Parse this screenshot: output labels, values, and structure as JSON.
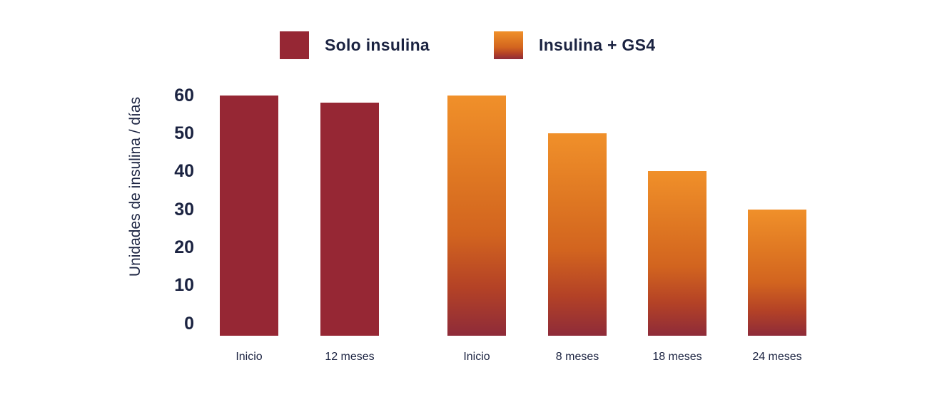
{
  "colors": {
    "solo_insulina_bar": "#962734",
    "gs4_gradient": [
      {
        "color": "#F0902A",
        "stop": 0
      },
      {
        "color": "#DE7622",
        "stop": 35
      },
      {
        "color": "#D2641F",
        "stop": 58
      },
      {
        "color": "#B44226",
        "stop": 80
      },
      {
        "color": "#8E2B39",
        "stop": 100
      }
    ],
    "text": "#1B2341",
    "background": "#FFFFFF"
  },
  "chart_data": {
    "type": "bar",
    "title": "",
    "ylabel": "Unidades de insulina / días",
    "xlabel": "",
    "ylim": [
      0,
      60
    ],
    "yticks": [
      60,
      50,
      40,
      30,
      20,
      10,
      0
    ],
    "grid": false,
    "legend_position": "top",
    "legend": [
      "Solo insulina",
      "Insulina + GS4"
    ],
    "bars": [
      {
        "label": "Inicio",
        "value": 60,
        "series": "Solo insulina"
      },
      {
        "label": "12 meses",
        "value": 58,
        "series": "Solo insulina"
      },
      {
        "label": "Inicio",
        "value": 60,
        "series": "Insulina + GS4"
      },
      {
        "label": "8 meses",
        "value": 50,
        "series": "Insulina + GS4"
      },
      {
        "label": "18 meses",
        "value": 40,
        "series": "Insulina + GS4"
      },
      {
        "label": "24 meses",
        "value": 30,
        "series": "Insulina + GS4"
      }
    ],
    "series": [
      {
        "name": "Solo insulina",
        "categories": [
          "Inicio",
          "12 meses"
        ],
        "values": [
          60,
          58
        ]
      },
      {
        "name": "Insulina + GS4",
        "categories": [
          "Inicio",
          "8 meses",
          "18 meses",
          "24 meses"
        ],
        "values": [
          60,
          50,
          40,
          30
        ]
      }
    ]
  }
}
